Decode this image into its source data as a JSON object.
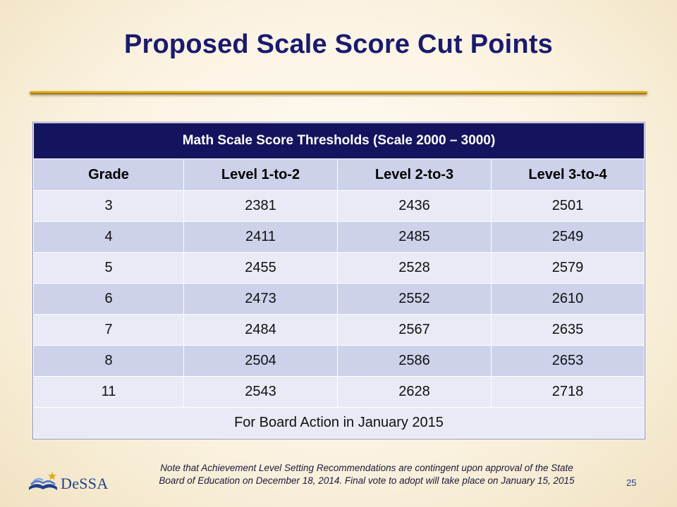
{
  "slide": {
    "title": "Proposed Scale Score Cut Points",
    "page_number": "25"
  },
  "table": {
    "caption": "Math Scale Score Thresholds (Scale 2000 – 3000)",
    "headers": [
      "Grade",
      "Level 1-to-2",
      "Level 2-to-3",
      "Level 3-to-4"
    ],
    "rows": [
      [
        "3",
        "2381",
        "2436",
        "2501"
      ],
      [
        "4",
        "2411",
        "2485",
        "2549"
      ],
      [
        "5",
        "2455",
        "2528",
        "2579"
      ],
      [
        "6",
        "2473",
        "2552",
        "2610"
      ],
      [
        "7",
        "2484",
        "2567",
        "2635"
      ],
      [
        "8",
        "2504",
        "2586",
        "2653"
      ],
      [
        "11",
        "2543",
        "2628",
        "2718"
      ]
    ],
    "footer": "For Board Action in January 2015"
  },
  "note": {
    "line1": "Note that Achievement Level Setting Recommendations are contingent upon approval of the State",
    "line2": "Board of Education on December 18, 2014. Final vote to adopt will take place on January 15, 2015"
  },
  "logo": {
    "text": "DeSSA",
    "icon": "open-book-star-icon"
  },
  "colors": {
    "title": "#1a1a6e",
    "caption_bg": "#14145e",
    "row_dark": "#cdd2ea",
    "row_light": "#e8eaf5",
    "rule_gold": "#c99a1c"
  }
}
